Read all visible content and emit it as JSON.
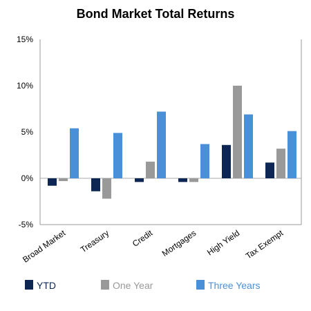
{
  "chart_data": {
    "type": "bar",
    "title": "Bond Market Total Returns",
    "xlabel": "",
    "ylabel": "",
    "categories": [
      "Broad Market",
      "Treasury",
      "Credit",
      "Mortgages",
      "High Yield",
      "Tax Exempt"
    ],
    "series": [
      {
        "name": "YTD",
        "color": "#0d2653",
        "values": [
          -0.8,
          -1.4,
          -0.4,
          -0.4,
          3.6,
          1.7
        ]
      },
      {
        "name": "One Year",
        "color": "#999999",
        "values": [
          -0.3,
          -2.2,
          1.8,
          -0.4,
          10.0,
          3.2
        ]
      },
      {
        "name": "Three Years",
        "color": "#4a90d9",
        "values": [
          5.4,
          4.9,
          7.2,
          3.7,
          6.9,
          5.1
        ]
      }
    ],
    "ylim": [
      -5,
      15
    ],
    "yticks": [
      -5,
      0,
      5,
      10,
      15
    ],
    "ytick_labels": [
      "-5%",
      "0%",
      "5%",
      "10%",
      "15%"
    ],
    "grid": false,
    "legend_position": "bottom"
  }
}
